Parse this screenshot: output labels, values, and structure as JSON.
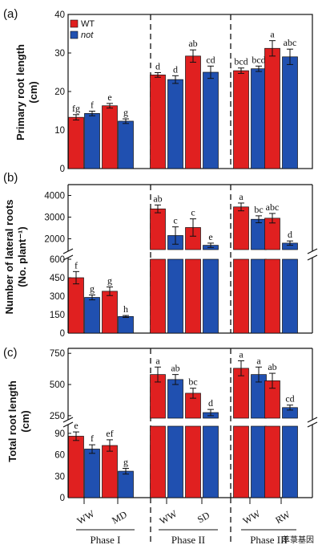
{
  "chart_data": [
    {
      "type": "bar",
      "panel_label": "(a)",
      "ylabel": "Primary root length",
      "ylabel_unit": "(cm)",
      "ylim": [
        0,
        40
      ],
      "yticks": [
        "0",
        "10",
        "20",
        "30",
        "40"
      ],
      "legend": {
        "placement": "top-left",
        "entries": [
          "WT",
          "not"
        ]
      },
      "series_colors": [
        "#e02020",
        "#2050b0"
      ],
      "groups": [
        {
          "phase": "Phase I",
          "treatment": "WW",
          "values": [
            13.3,
            14.3
          ],
          "errors": [
            0.7,
            0.6
          ],
          "letters": [
            "fg",
            "f"
          ]
        },
        {
          "phase": "Phase I",
          "treatment": "MD",
          "values": [
            16.3,
            12.3
          ],
          "errors": [
            0.6,
            0.6
          ],
          "letters": [
            "e",
            "g"
          ]
        },
        {
          "phase": "Phase II",
          "treatment": "WW",
          "values": [
            24.3,
            23.1
          ],
          "errors": [
            0.6,
            1.0
          ],
          "letters": [
            "d",
            "d"
          ]
        },
        {
          "phase": "Phase II",
          "treatment": "SD",
          "values": [
            29.2,
            25.0
          ],
          "errors": [
            1.6,
            1.6
          ],
          "letters": [
            "ab",
            "cd"
          ]
        },
        {
          "phase": "Phase III",
          "treatment": "WW",
          "values": [
            25.4,
            25.9
          ],
          "errors": [
            0.7,
            0.7
          ],
          "letters": [
            "bcd",
            "bcd"
          ]
        },
        {
          "phase": "Phase III",
          "treatment": "RW",
          "values": [
            31.2,
            29.0
          ],
          "errors": [
            2.0,
            2.0
          ],
          "letters": [
            "a",
            "abc"
          ]
        }
      ]
    },
    {
      "type": "bar",
      "panel_label": "(b)",
      "ylabel": "Number of lateral roots",
      "ylabel_unit": "(No. plant⁻¹)",
      "broken_axis": true,
      "ylim_lower": [
        0,
        600
      ],
      "yticks_lower": [
        "0",
        "150",
        "300",
        "450",
        "600"
      ],
      "ylim_upper": [
        1500,
        4500
      ],
      "yticks_upper": [
        "2000",
        "3000",
        "4000"
      ],
      "series_colors": [
        "#e02020",
        "#2050b0"
      ],
      "groups": [
        {
          "phase": "Phase I",
          "treatment": "WW",
          "values": [
            450,
            290
          ],
          "errors": [
            50,
            20
          ],
          "letters": [
            "f",
            "g"
          ]
        },
        {
          "phase": "Phase I",
          "treatment": "MD",
          "values": [
            340,
            135
          ],
          "errors": [
            35,
            8
          ],
          "letters": [
            "g",
            "h"
          ]
        },
        {
          "phase": "Phase II",
          "treatment": "WW",
          "values": [
            3380,
            2150
          ],
          "errors": [
            180,
            400
          ],
          "letters": [
            "ab",
            "c"
          ]
        },
        {
          "phase": "Phase II",
          "treatment": "SD",
          "values": [
            2520,
            1700
          ],
          "errors": [
            400,
            100
          ],
          "letters": [
            "c",
            "e"
          ]
        },
        {
          "phase": "Phase III",
          "treatment": "WW",
          "values": [
            3470,
            2900
          ],
          "errors": [
            180,
            160
          ],
          "letters": [
            "a",
            "bc"
          ]
        },
        {
          "phase": "Phase III",
          "treatment": "RW",
          "values": [
            2950,
            1800
          ],
          "errors": [
            220,
            100
          ],
          "letters": [
            "abc",
            "d"
          ]
        }
      ]
    },
    {
      "type": "bar",
      "panel_label": "(c)",
      "ylabel": "Total root length",
      "ylabel_unit": "(cm)",
      "broken_axis": true,
      "ylim_lower": [
        0,
        100
      ],
      "yticks_lower": [
        "0",
        "30",
        "60",
        "90"
      ],
      "ylim_upper": [
        230,
        790
      ],
      "yticks_upper": [
        "250",
        "500",
        "750"
      ],
      "series_colors": [
        "#e02020",
        "#2050b0"
      ],
      "groups": [
        {
          "phase": "Phase I",
          "treatment": "WW",
          "values": [
            86,
            68
          ],
          "errors": [
            6,
            6
          ],
          "letters": [
            "e",
            "f"
          ]
        },
        {
          "phase": "Phase I",
          "treatment": "MD",
          "values": [
            73,
            37
          ],
          "errors": [
            8,
            4
          ],
          "letters": [
            "ef",
            "g"
          ]
        },
        {
          "phase": "Phase II",
          "treatment": "WW",
          "values": [
            580,
            540
          ],
          "errors": [
            60,
            40
          ],
          "letters": [
            "a",
            "ab"
          ]
        },
        {
          "phase": "Phase II",
          "treatment": "SD",
          "values": [
            430,
            275
          ],
          "errors": [
            40,
            25
          ],
          "letters": [
            "bc",
            "d"
          ]
        },
        {
          "phase": "Phase III",
          "treatment": "WW",
          "values": [
            630,
            580
          ],
          "errors": [
            60,
            60
          ],
          "letters": [
            "a",
            "a"
          ]
        },
        {
          "phase": "Phase III",
          "treatment": "RW",
          "values": [
            530,
            315
          ],
          "errors": [
            60,
            20
          ],
          "letters": [
            "ab",
            "cd"
          ]
        }
      ]
    }
  ],
  "x_axis": {
    "treatments": [
      "WW",
      "MD",
      "WW",
      "SD",
      "WW",
      "RW"
    ],
    "phases": [
      "Phase I",
      "Phase II",
      "Phase III"
    ]
  },
  "watermark": "萃菉基因"
}
